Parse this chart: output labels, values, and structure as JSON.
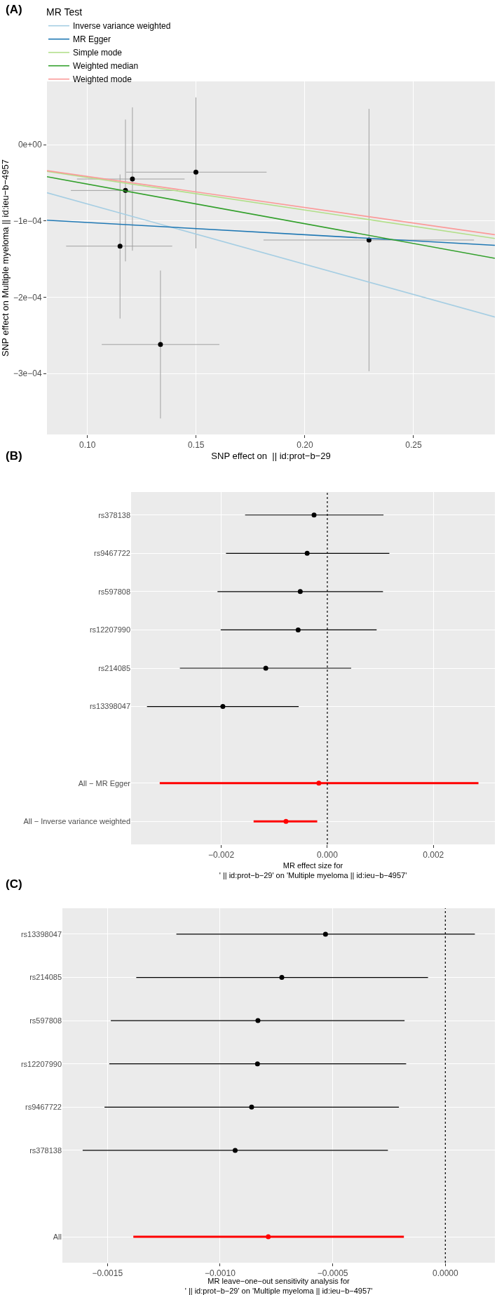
{
  "chart_data": [
    {
      "type": "scatter",
      "title": "(A)",
      "xlabel": "SNP effect on  || id:prot−b−29",
      "ylabel": "SNP effect on Multiple myeloma || id:ieu−b−4957",
      "legend_title": "MR Test",
      "legend": "top",
      "grid": true,
      "marker": "circle",
      "xlim": [
        0.0814,
        0.2874
      ],
      "xticks": [
        {
          "value": 0.1,
          "label": "0.10"
        },
        0.15,
        {
          "value": 0.2,
          "label": "0.20"
        },
        0.25
      ],
      "ylim": [
        -0.00038,
        8.3e-05
      ],
      "yticks": [
        {
          "value": 0,
          "label": "0e+00"
        },
        {
          "value": -0.0001,
          "label": "−1e−04"
        },
        {
          "value": -0.0002,
          "label": "−2e−04"
        },
        {
          "value": -0.0003,
          "label": "−3e−04"
        }
      ],
      "series": [
        {
          "type": "scatter",
          "color": "#000000",
          "x": [
            0.115,
            0.1175,
            0.1207,
            0.1336,
            0.1499,
            0.2295
          ],
          "values": [
            -0.000133,
            -6e-05,
            -4.5e-05,
            -0.000262,
            -3.6e-05,
            -0.000125
          ],
          "errors": [
            [
              -0.000228,
              -3.9e-05
            ],
            [
              -0.000153,
              3.3e-05
            ],
            [
              -0.000139,
              4.9e-05
            ],
            [
              -0.000359,
              -0.000165
            ],
            [
              -0.000136,
              6.2e-05
            ],
            [
              -0.000297,
              4.7e-05
            ]
          ],
          "xerrors": [
            [
              0.0902,
              0.139
            ],
            [
              0.0924,
              0.1416
            ],
            [
              0.0952,
              0.1447
            ],
            [
              0.1066,
              0.1607
            ],
            [
              0.1178,
              0.1824
            ],
            [
              0.181,
              0.2778
            ]
          ]
        },
        {
          "type": "line",
          "marker": "none",
          "name": "Inverse variance weighted",
          "color": "#a6cee3",
          "x": [
            0.0814,
            0.2874
          ],
          "values": [
            -6.3e-05,
            -0.000226
          ]
        },
        {
          "type": "line",
          "marker": "none",
          "name": "MR Egger",
          "color": "#1f78b4",
          "x": [
            0.0814,
            0.2874
          ],
          "values": [
            -9.9e-05,
            -0.000132
          ]
        },
        {
          "type": "line",
          "marker": "none",
          "name": "Simple mode",
          "color": "#b2df8a",
          "x": [
            0.0814,
            0.2874
          ],
          "values": [
            -3.5e-05,
            -0.000123
          ]
        },
        {
          "type": "line",
          "marker": "none",
          "name": "Weighted median",
          "color": "#33a02c",
          "x": [
            0.0814,
            0.2874
          ],
          "values": [
            -4.2e-05,
            -0.000149
          ]
        },
        {
          "type": "line",
          "marker": "none",
          "name": "Weighted mode",
          "color": "#fb9a99",
          "x": [
            0.0814,
            0.2874
          ],
          "values": [
            -3.4e-05,
            -0.000118
          ]
        }
      ]
    },
    {
      "type": "scatter",
      "title": "(B)",
      "xlabel": "MR effect size for\n' || id:prot−b−29' on 'Multiple myeloma || id:ieu−b−4957'",
      "orientation": "horizontal",
      "grid": true,
      "marker": "circle",
      "categories": [
        "rs378138",
        "rs9467722",
        "rs597808",
        "rs12207990",
        "rs214085",
        "rs13398047",
        null,
        "All − MR Egger",
        "All − Inverse variance weighted"
      ],
      "xlim": [
        -0.0037,
        0.00316
      ],
      "xticks": [
        {
          "value": -0.002,
          "label": "−0.002"
        },
        {
          "value": 0,
          "label": "0.000"
        },
        {
          "value": 0.002,
          "label": "0.002"
        }
      ],
      "ref_lines": [
        {
          "axis": "x",
          "value": 0,
          "color": "#000000",
          "line_style": "dotted"
        }
      ],
      "series": [
        {
          "color": "#000000",
          "values": [
            -0.00025,
            -0.00038,
            -0.00051,
            -0.00055,
            -0.00116,
            -0.00197,
            null,
            null,
            null
          ],
          "errors": [
            [
              -0.00155,
              0.00106
            ],
            [
              -0.00191,
              0.00117
            ],
            [
              -0.00207,
              0.00105
            ],
            [
              -0.00201,
              0.00093
            ],
            [
              -0.00278,
              0.00045
            ],
            [
              -0.0034,
              -0.00054
            ],
            null,
            null,
            null
          ]
        },
        {
          "color": "#ff0000",
          "values": [
            null,
            null,
            null,
            null,
            null,
            null,
            null,
            -0.00016,
            -0.00078
          ],
          "errors": [
            null,
            null,
            null,
            null,
            null,
            null,
            null,
            [
              -0.00316,
              0.00285
            ],
            [
              -0.00139,
              -0.00019
            ]
          ]
        }
      ]
    },
    {
      "type": "scatter",
      "title": "(C)",
      "xlabel": "MR leave−one−out sensitivity analysis for\n' || id:prot−b−29' on 'Multiple myeloma || id:ieu−b−4957'",
      "orientation": "horizontal",
      "grid": true,
      "marker": "circle",
      "categories": [
        "rs13398047",
        "rs214085",
        "rs597808",
        "rs12207990",
        "rs9467722",
        "rs378138",
        null,
        "All"
      ],
      "xlim": [
        -0.0017,
        0.00022
      ],
      "xticks": [
        {
          "value": -0.0015,
          "label": "−0.0015"
        },
        {
          "value": -0.001,
          "label": "−0.0010"
        },
        {
          "value": -0.0005,
          "label": "−0.0005"
        },
        {
          "value": 0,
          "label": "0.0000"
        }
      ],
      "ref_lines": [
        {
          "axis": "x",
          "value": 0,
          "color": "#000000",
          "line_style": "dotted"
        }
      ],
      "series": [
        {
          "color": "#000000",
          "values": [
            -0.000532,
            -0.000726,
            -0.000832,
            -0.000834,
            -0.00086,
            -0.000933,
            null,
            null
          ],
          "errors": [
            [
              -0.001194,
              0.000131
            ],
            [
              -0.001372,
              -7.7e-05
            ],
            [
              -0.001485,
              -0.000181
            ],
            [
              -0.001492,
              -0.000174
            ],
            [
              -0.001513,
              -0.000206
            ],
            [
              -0.00161,
              -0.000255
            ],
            null,
            null
          ]
        },
        {
          "color": "#ff0000",
          "values": [
            null,
            null,
            null,
            null,
            null,
            null,
            null,
            -0.000786
          ],
          "errors": [
            null,
            null,
            null,
            null,
            null,
            null,
            null,
            [
              -0.001385,
              -0.000184
            ]
          ]
        }
      ]
    }
  ]
}
